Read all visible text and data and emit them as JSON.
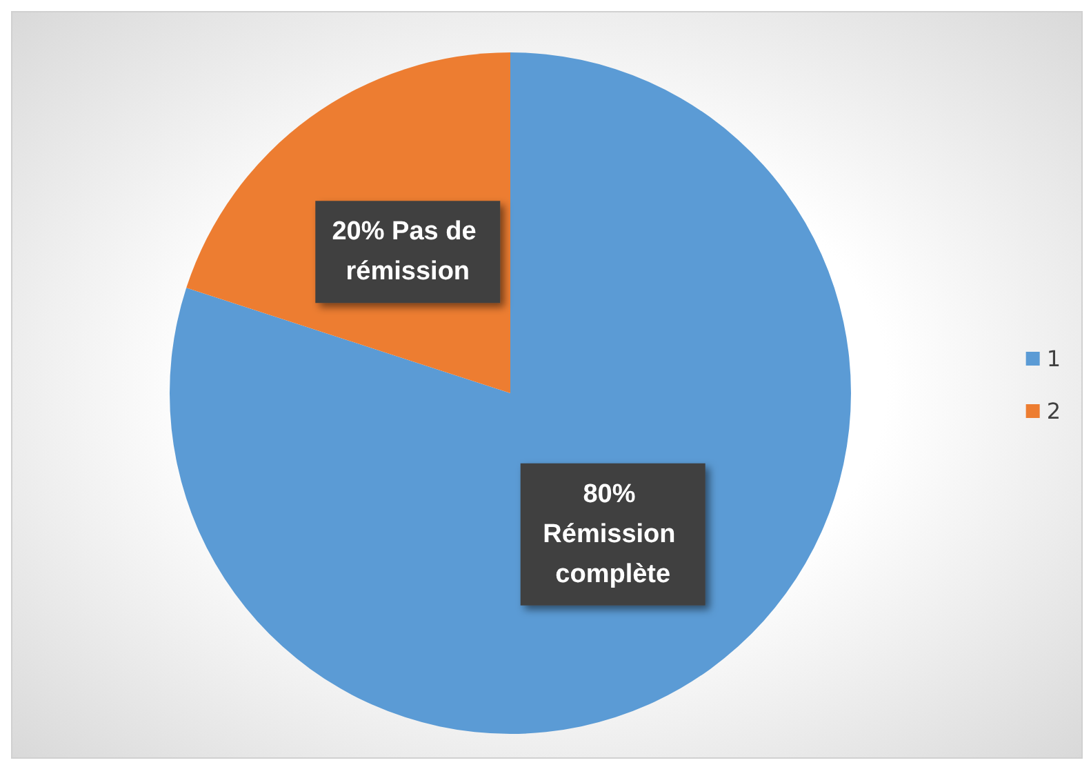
{
  "chart_data": {
    "type": "pie",
    "categories": [
      "1",
      "2"
    ],
    "values": [
      80,
      20
    ],
    "colors": [
      "#5b9bd5",
      "#ed7d31"
    ],
    "value_labels": [
      "80% Rémission complète",
      "20% Pas de rémission"
    ],
    "legend": "right"
  }
}
